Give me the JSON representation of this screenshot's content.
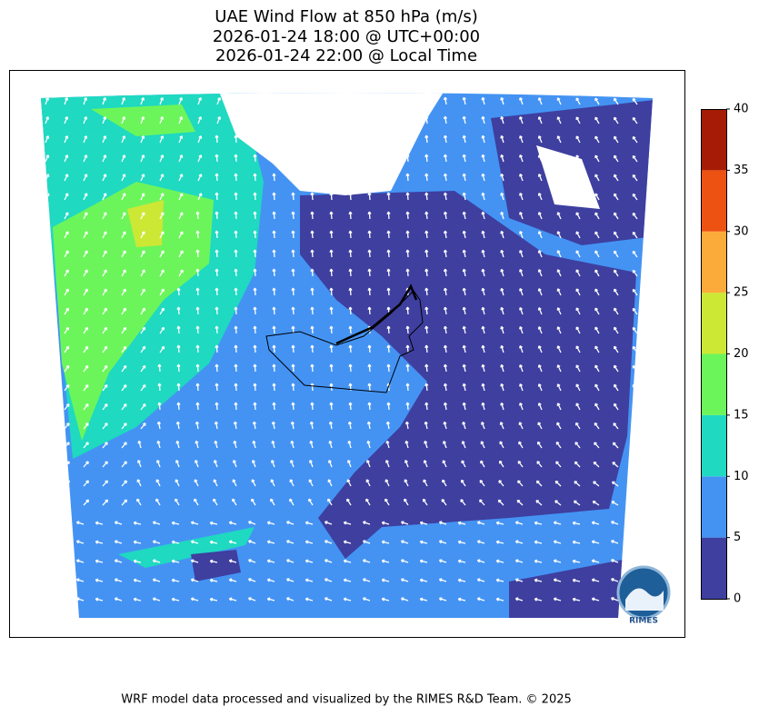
{
  "title": [
    "UAE Wind Flow at 850 hPa (m/s)",
    "2026-01-24 18:00 @ UTC+00:00",
    "2026-01-24 22:00 @ Local Time"
  ],
  "colorbar": {
    "ticks": [
      0,
      5,
      10,
      15,
      20,
      25,
      30,
      35,
      40
    ],
    "colors": [
      "#3e3f9f",
      "#4493f3",
      "#1fd9c1",
      "#6cf55b",
      "#cde735",
      "#fbab39",
      "#ed5212",
      "#a51b05"
    ]
  },
  "logo_text": "RIMES",
  "footer": "WRF model data processed and visualized by the RIMES R&D Team. © 2025"
}
